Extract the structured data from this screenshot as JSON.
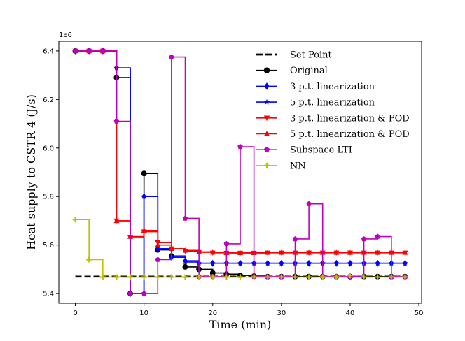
{
  "chart_data": {
    "type": "line",
    "step": "post",
    "xlabel": "Time (min)",
    "ylabel": "Heat supply to CSTR 4 (J/s)",
    "offset_text": "1e6",
    "xlim": [
      -2.4,
      50.4
    ],
    "ylim": [
      5.36,
      6.44
    ],
    "xticks": [
      0,
      10,
      20,
      30,
      40,
      50
    ],
    "yticks": [
      5.4,
      5.6,
      5.8,
      6.0,
      6.2,
      6.4
    ],
    "ytick_labels": [
      "5.4",
      "5.6",
      "5.8",
      "6.0",
      "6.2",
      "6.4"
    ],
    "legend_position": "upper right",
    "series": [
      {
        "name": "Set Point",
        "color": "#000000",
        "dashed": true,
        "marker": "none",
        "x": [
          0,
          48
        ],
        "y": [
          5.47,
          5.47
        ]
      },
      {
        "name": "Original",
        "color": "#000000",
        "marker": "circle",
        "x": [
          0,
          2,
          4,
          6,
          8,
          10,
          12,
          14,
          16,
          18,
          20,
          22,
          24,
          26,
          28,
          30,
          32,
          34,
          36,
          38,
          40,
          42,
          44,
          46,
          48
        ],
        "y": [
          6.4,
          6.4,
          6.4,
          6.29,
          5.4,
          5.895,
          5.58,
          5.555,
          5.51,
          5.5,
          5.485,
          5.48,
          5.475,
          5.472,
          5.47,
          5.47,
          5.47,
          5.47,
          5.47,
          5.47,
          5.47,
          5.47,
          5.47,
          5.47,
          5.47
        ]
      },
      {
        "name": "3 p.t. linearization",
        "color": "#0000ff",
        "marker": "diamond",
        "x": [
          0,
          2,
          4,
          6,
          8,
          10,
          12,
          14,
          16,
          18,
          20,
          22,
          24,
          26,
          28,
          30,
          32,
          34,
          36,
          38,
          40,
          42,
          44,
          46,
          48
        ],
        "y": [
          6.4,
          6.4,
          6.4,
          6.33,
          5.4,
          5.8,
          5.585,
          5.55,
          5.535,
          5.525,
          5.525,
          5.525,
          5.525,
          5.525,
          5.525,
          5.525,
          5.525,
          5.525,
          5.525,
          5.525,
          5.525,
          5.525,
          5.525,
          5.525,
          5.525
        ]
      },
      {
        "name": "5 p.t. linearization",
        "color": "#0000ff",
        "marker": "star",
        "x": [
          0,
          2,
          4,
          6,
          8,
          10,
          12,
          14,
          16,
          18,
          20,
          22,
          24,
          26,
          28,
          30,
          32,
          34,
          36,
          38,
          40,
          42,
          44,
          46,
          48
        ],
        "y": [
          6.4,
          6.4,
          6.4,
          6.33,
          5.4,
          5.8,
          5.585,
          5.55,
          5.53,
          5.525,
          5.525,
          5.525,
          5.525,
          5.525,
          5.525,
          5.525,
          5.525,
          5.525,
          5.525,
          5.525,
          5.525,
          5.525,
          5.525,
          5.525,
          5.525
        ]
      },
      {
        "name": "3 p.t. linearization & POD",
        "color": "#ff0000",
        "marker": "triangle-down",
        "x": [
          0,
          2,
          4,
          6,
          8,
          10,
          12,
          14,
          16,
          18,
          20,
          22,
          24,
          26,
          28,
          30,
          32,
          34,
          36,
          38,
          40,
          42,
          44,
          46,
          48
        ],
        "y": [
          6.4,
          6.4,
          6.4,
          5.7,
          5.63,
          5.655,
          5.61,
          5.585,
          5.575,
          5.57,
          5.568,
          5.567,
          5.567,
          5.567,
          5.568,
          5.568,
          5.568,
          5.568,
          5.568,
          5.568,
          5.568,
          5.568,
          5.568,
          5.568,
          5.568
        ]
      },
      {
        "name": "5 p.t. linearization & POD",
        "color": "#ff0000",
        "marker": "triangle-up",
        "x": [
          0,
          2,
          4,
          6,
          8,
          10,
          12,
          14,
          16,
          18,
          20,
          22,
          24,
          26,
          28,
          30,
          32,
          34,
          36,
          38,
          40,
          42,
          44,
          46,
          48
        ],
        "y": [
          6.4,
          6.4,
          6.4,
          5.7,
          5.635,
          5.66,
          5.6,
          5.585,
          5.578,
          5.572,
          5.57,
          5.568,
          5.568,
          5.568,
          5.569,
          5.569,
          5.569,
          5.569,
          5.569,
          5.569,
          5.569,
          5.569,
          5.569,
          5.569,
          5.569
        ]
      },
      {
        "name": "Subspace LTI",
        "color": "#bf00bf",
        "marker": "pentagon",
        "x": [
          0,
          2,
          4,
          6,
          8,
          10,
          12,
          14,
          16,
          18,
          20,
          22,
          24,
          26,
          28,
          30,
          32,
          34,
          36,
          38,
          40,
          42,
          44,
          46,
          48
        ],
        "y": [
          6.4,
          6.4,
          6.4,
          6.11,
          5.4,
          5.4,
          5.54,
          6.375,
          5.71,
          5.47,
          5.47,
          5.605,
          6.005,
          5.47,
          5.47,
          5.47,
          5.625,
          5.77,
          5.47,
          5.47,
          5.47,
          5.625,
          5.635,
          5.47,
          5.47
        ]
      },
      {
        "name": "NN",
        "color": "#bfbf00",
        "marker": "plus",
        "x": [
          0,
          2,
          4,
          6,
          8,
          10,
          12,
          14,
          16,
          18,
          20,
          22,
          24,
          26,
          28,
          30,
          32,
          34,
          36,
          38,
          40,
          42,
          44,
          46,
          48
        ],
        "y": [
          5.705,
          5.54,
          5.468,
          5.468,
          5.468,
          5.468,
          5.468,
          5.468,
          5.468,
          5.468,
          5.468,
          5.468,
          5.468,
          5.468,
          5.468,
          5.468,
          5.468,
          5.468,
          5.468,
          5.468,
          5.475,
          5.468,
          5.468,
          5.468,
          5.468
        ]
      }
    ]
  }
}
